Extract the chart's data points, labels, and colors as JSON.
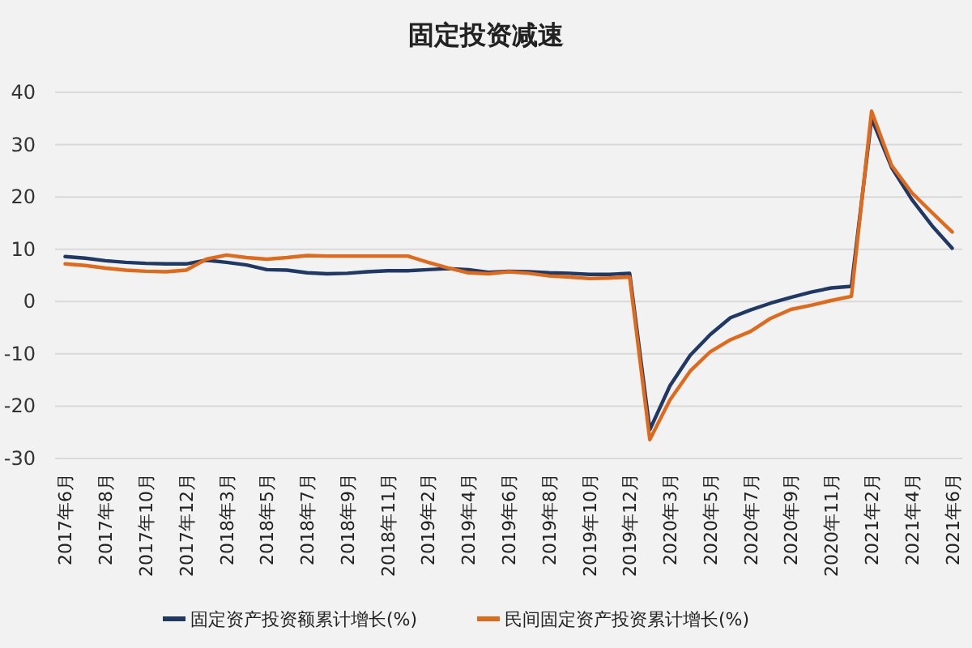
{
  "chart_data": {
    "type": "line",
    "title": "固定投资减速",
    "categories": [
      "2017年6月",
      null,
      "2017年8月",
      null,
      "2017年10月",
      null,
      "2017年12月",
      null,
      "2018年3月",
      null,
      "2018年5月",
      null,
      "2018年7月",
      null,
      "2018年9月",
      null,
      "2018年11月",
      null,
      "2019年2月",
      null,
      "2019年4月",
      null,
      "2019年6月",
      null,
      "2019年8月",
      null,
      "2019年10月",
      null,
      "2019年12月",
      null,
      "2020年3月",
      null,
      "2020年5月",
      null,
      "2020年7月",
      null,
      "2020年9月",
      null,
      "2020年11月",
      null,
      "2021年2月",
      null,
      "2021年4月",
      null,
      "2021年6月"
    ],
    "series": [
      {
        "name": "固定资产投资额累计增长(%)",
        "color": "#1f3864",
        "values": [
          8.6,
          8.3,
          7.8,
          7.5,
          7.3,
          7.2,
          7.2,
          7.9,
          7.5,
          7.0,
          6.1,
          6.0,
          5.5,
          5.3,
          5.4,
          5.7,
          5.9,
          5.9,
          6.1,
          6.3,
          6.1,
          5.6,
          5.8,
          5.7,
          5.5,
          5.4,
          5.2,
          5.2,
          5.4,
          -24.5,
          -16.1,
          -10.3,
          -6.3,
          -3.1,
          -1.6,
          -0.3,
          0.8,
          1.8,
          2.6,
          2.9,
          35.0,
          25.6,
          19.5,
          14.5,
          10.2
        ]
      },
      {
        "name": "民间固定资产投资累计增长(%)",
        "color": "#e06a1b",
        "values": [
          7.2,
          6.9,
          6.4,
          6.0,
          5.8,
          5.7,
          6.0,
          8.1,
          8.9,
          8.4,
          8.1,
          8.4,
          8.8,
          8.7,
          8.7,
          8.7,
          8.7,
          8.7,
          7.5,
          6.4,
          5.5,
          5.3,
          5.7,
          5.4,
          4.9,
          4.7,
          4.4,
          4.5,
          4.7,
          -26.4,
          -18.8,
          -13.3,
          -9.6,
          -7.3,
          -5.7,
          -3.2,
          -1.5,
          -0.7,
          0.2,
          1.0,
          36.4,
          26.0,
          20.8,
          17.0,
          13.3
        ]
      }
    ],
    "ylim": [
      -30,
      40
    ],
    "yticks": [
      -30,
      -20,
      -10,
      0,
      10,
      20,
      30,
      40
    ],
    "grid": "y",
    "legend": "bottom",
    "marker": "none",
    "line_style": "solid"
  }
}
